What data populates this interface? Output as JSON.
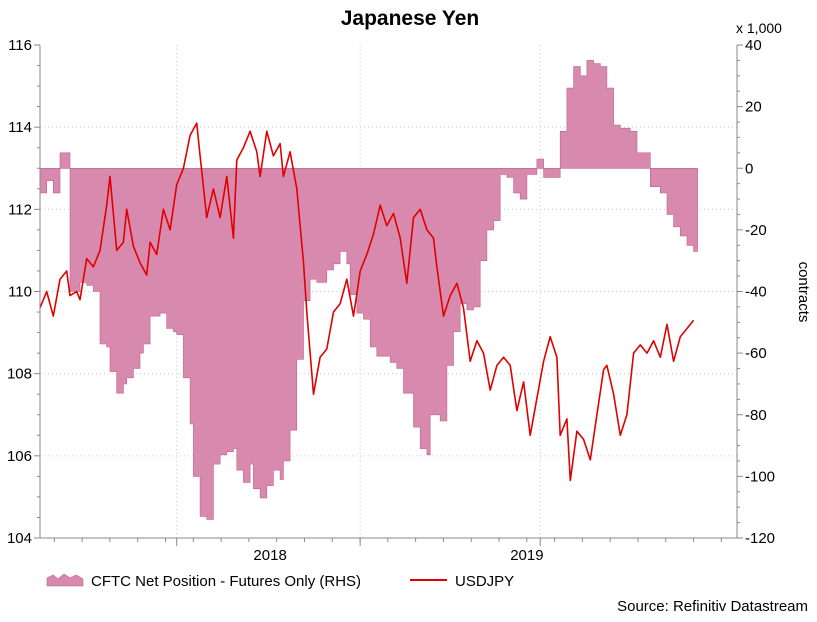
{
  "chart_data": {
    "type": "area+line",
    "title": "Japanese Yen",
    "x_ticks": [
      "2018",
      "2019"
    ],
    "x_range": [
      2017.54,
      2019.63
    ],
    "left_axis": {
      "name": "USDJPY",
      "range": [
        104,
        116
      ],
      "ticks": [
        104,
        106,
        108,
        110,
        112,
        114,
        116
      ]
    },
    "right_axis": {
      "label": "contracts",
      "unit": "x 1,000",
      "range": [
        -120,
        40
      ],
      "ticks": [
        40,
        20,
        0,
        -20,
        -40,
        -60,
        -80,
        -100,
        -120
      ]
    },
    "grid": true,
    "legend_position": "bottom-left",
    "series": [
      {
        "name": "CFTC Net Position - Futures Only (RHS)",
        "type": "area",
        "axis": "right",
        "color": "#d88aae",
        "points": [
          [
            2017.54,
            -8
          ],
          [
            2017.56,
            -4
          ],
          [
            2017.58,
            -8
          ],
          [
            2017.6,
            5
          ],
          [
            2017.62,
            5
          ],
          [
            2017.63,
            -40
          ],
          [
            2017.66,
            -37
          ],
          [
            2017.68,
            -38
          ],
          [
            2017.7,
            -40
          ],
          [
            2017.72,
            -57
          ],
          [
            2017.74,
            -58
          ],
          [
            2017.75,
            -66
          ],
          [
            2017.77,
            -73
          ],
          [
            2017.79,
            -70
          ],
          [
            2017.8,
            -68
          ],
          [
            2017.82,
            -65
          ],
          [
            2017.84,
            -60
          ],
          [
            2017.85,
            -57
          ],
          [
            2017.87,
            -48
          ],
          [
            2017.9,
            -47
          ],
          [
            2017.92,
            -52
          ],
          [
            2017.94,
            -53
          ],
          [
            2017.95,
            -54
          ],
          [
            2017.97,
            -68
          ],
          [
            2017.99,
            -83
          ],
          [
            2018.0,
            -100
          ],
          [
            2018.02,
            -113
          ],
          [
            2018.04,
            -114
          ],
          [
            2018.06,
            -96
          ],
          [
            2018.08,
            -93
          ],
          [
            2018.1,
            -92
          ],
          [
            2018.12,
            -91
          ],
          [
            2018.13,
            -98
          ],
          [
            2018.15,
            -102
          ],
          [
            2018.17,
            -96
          ],
          [
            2018.18,
            -104
          ],
          [
            2018.2,
            -107
          ],
          [
            2018.22,
            -103
          ],
          [
            2018.24,
            -98
          ],
          [
            2018.26,
            -101
          ],
          [
            2018.27,
            -95
          ],
          [
            2018.29,
            -85
          ],
          [
            2018.31,
            -62
          ],
          [
            2018.33,
            -43
          ],
          [
            2018.35,
            -36
          ],
          [
            2018.37,
            -37
          ],
          [
            2018.4,
            -33
          ],
          [
            2018.42,
            -31
          ],
          [
            2018.44,
            -27
          ],
          [
            2018.46,
            -31
          ],
          [
            2018.47,
            -41
          ],
          [
            2018.49,
            -47
          ],
          [
            2018.51,
            -49
          ],
          [
            2018.53,
            -58
          ],
          [
            2018.55,
            -61
          ],
          [
            2018.57,
            -61
          ],
          [
            2018.59,
            -63
          ],
          [
            2018.61,
            -65
          ],
          [
            2018.63,
            -73
          ],
          [
            2018.66,
            -84
          ],
          [
            2018.68,
            -91
          ],
          [
            2018.7,
            -93
          ],
          [
            2018.71,
            -80
          ],
          [
            2018.74,
            -82
          ],
          [
            2018.76,
            -64
          ],
          [
            2018.78,
            -53
          ],
          [
            2018.8,
            -44
          ],
          [
            2018.82,
            -46
          ],
          [
            2018.84,
            -45
          ],
          [
            2018.86,
            -30
          ],
          [
            2018.88,
            -20
          ],
          [
            2018.9,
            -17
          ],
          [
            2018.92,
            -2
          ],
          [
            2018.94,
            -3
          ],
          [
            2018.96,
            -8
          ],
          [
            2018.98,
            -10
          ],
          [
            2019.0,
            -2
          ],
          [
            2019.03,
            3
          ],
          [
            2019.05,
            -3
          ],
          [
            2019.1,
            12
          ],
          [
            2019.12,
            26
          ],
          [
            2019.14,
            33
          ],
          [
            2019.16,
            30
          ],
          [
            2019.18,
            35
          ],
          [
            2019.2,
            34
          ],
          [
            2019.22,
            33
          ],
          [
            2019.24,
            26
          ],
          [
            2019.26,
            14
          ],
          [
            2019.28,
            13
          ],
          [
            2019.31,
            12
          ],
          [
            2019.33,
            5
          ],
          [
            2019.37,
            -6
          ],
          [
            2019.4,
            -8
          ],
          [
            2019.42,
            -15
          ],
          [
            2019.44,
            -19
          ],
          [
            2019.46,
            -22
          ],
          [
            2019.48,
            -25
          ],
          [
            2019.5,
            -27
          ]
        ]
      },
      {
        "name": "USDJPY",
        "type": "line",
        "axis": "left",
        "color": "#e00000",
        "points": [
          [
            2017.54,
            109.6
          ],
          [
            2017.56,
            110.0
          ],
          [
            2017.58,
            109.4
          ],
          [
            2017.6,
            110.3
          ],
          [
            2017.62,
            110.5
          ],
          [
            2017.63,
            109.9
          ],
          [
            2017.65,
            110.0
          ],
          [
            2017.66,
            109.8
          ],
          [
            2017.68,
            110.8
          ],
          [
            2017.7,
            110.6
          ],
          [
            2017.72,
            111.0
          ],
          [
            2017.74,
            112.1
          ],
          [
            2017.75,
            112.8
          ],
          [
            2017.77,
            111.0
          ],
          [
            2017.79,
            111.2
          ],
          [
            2017.8,
            112.0
          ],
          [
            2017.82,
            111.1
          ],
          [
            2017.84,
            110.7
          ],
          [
            2017.86,
            110.4
          ],
          [
            2017.87,
            111.2
          ],
          [
            2017.89,
            110.9
          ],
          [
            2017.91,
            112.0
          ],
          [
            2017.93,
            111.5
          ],
          [
            2017.95,
            112.6
          ],
          [
            2017.97,
            113.0
          ],
          [
            2017.99,
            113.8
          ],
          [
            2018.01,
            114.1
          ],
          [
            2018.02,
            113.3
          ],
          [
            2018.04,
            111.8
          ],
          [
            2018.06,
            112.5
          ],
          [
            2018.08,
            111.8
          ],
          [
            2018.1,
            112.8
          ],
          [
            2018.12,
            111.3
          ],
          [
            2018.13,
            113.2
          ],
          [
            2018.15,
            113.5
          ],
          [
            2018.17,
            113.9
          ],
          [
            2018.19,
            113.4
          ],
          [
            2018.2,
            112.8
          ],
          [
            2018.22,
            113.9
          ],
          [
            2018.24,
            113.3
          ],
          [
            2018.26,
            113.6
          ],
          [
            2018.27,
            112.8
          ],
          [
            2018.29,
            113.4
          ],
          [
            2018.31,
            112.5
          ],
          [
            2018.33,
            110.7
          ],
          [
            2018.34,
            109.5
          ],
          [
            2018.36,
            107.5
          ],
          [
            2018.38,
            108.4
          ],
          [
            2018.4,
            108.6
          ],
          [
            2018.42,
            109.5
          ],
          [
            2018.44,
            109.7
          ],
          [
            2018.46,
            110.3
          ],
          [
            2018.48,
            109.4
          ],
          [
            2018.5,
            110.5
          ],
          [
            2018.52,
            110.9
          ],
          [
            2018.54,
            111.4
          ],
          [
            2018.56,
            112.1
          ],
          [
            2018.58,
            111.6
          ],
          [
            2018.6,
            111.9
          ],
          [
            2018.62,
            111.3
          ],
          [
            2018.64,
            110.2
          ],
          [
            2018.66,
            111.8
          ],
          [
            2018.68,
            112.0
          ],
          [
            2018.7,
            111.5
          ],
          [
            2018.72,
            111.3
          ],
          [
            2018.73,
            110.6
          ],
          [
            2018.75,
            109.4
          ],
          [
            2018.77,
            109.9
          ],
          [
            2018.79,
            110.2
          ],
          [
            2018.81,
            109.6
          ],
          [
            2018.83,
            108.3
          ],
          [
            2018.85,
            108.8
          ],
          [
            2018.87,
            108.5
          ],
          [
            2018.89,
            107.6
          ],
          [
            2018.91,
            108.2
          ],
          [
            2018.93,
            108.4
          ],
          [
            2018.95,
            108.2
          ],
          [
            2018.97,
            107.1
          ],
          [
            2018.99,
            107.8
          ],
          [
            2019.01,
            106.5
          ],
          [
            2019.03,
            107.4
          ],
          [
            2019.05,
            108.3
          ],
          [
            2019.07,
            108.9
          ],
          [
            2019.09,
            108.4
          ],
          [
            2019.1,
            106.5
          ],
          [
            2019.12,
            106.9
          ],
          [
            2019.13,
            105.4
          ],
          [
            2019.15,
            106.6
          ],
          [
            2019.17,
            106.4
          ],
          [
            2019.19,
            105.9
          ],
          [
            2019.21,
            107.0
          ],
          [
            2019.23,
            108.1
          ],
          [
            2019.24,
            108.2
          ],
          [
            2019.26,
            107.5
          ],
          [
            2019.28,
            106.5
          ],
          [
            2019.3,
            107.0
          ],
          [
            2019.32,
            108.5
          ],
          [
            2019.34,
            108.7
          ],
          [
            2019.36,
            108.5
          ],
          [
            2019.38,
            108.8
          ],
          [
            2019.4,
            108.4
          ],
          [
            2019.42,
            109.2
          ],
          [
            2019.44,
            108.3
          ],
          [
            2019.46,
            108.9
          ],
          [
            2019.48,
            109.1
          ],
          [
            2019.5,
            109.3
          ]
        ]
      }
    ],
    "source": "Source: Refinitiv Datastream"
  }
}
